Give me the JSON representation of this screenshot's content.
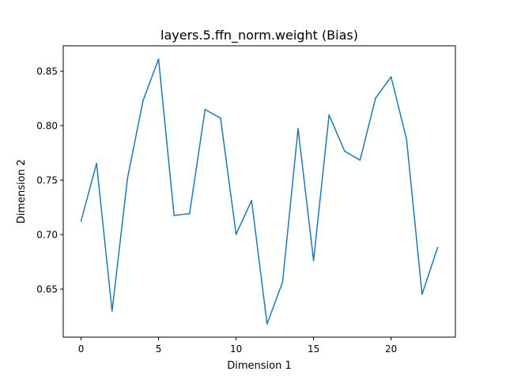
{
  "chart_data": {
    "type": "line",
    "title": "layers.5.ffn_norm.weight (Bias)",
    "xlabel": "Dimension 1",
    "ylabel": "Dimension 2",
    "xlim": [
      -1.15,
      24.15
    ],
    "ylim": [
      0.6059,
      0.8732
    ],
    "x_ticks": [
      0,
      5,
      10,
      15,
      20
    ],
    "y_ticks": [
      0.65,
      0.7,
      0.75,
      0.8,
      0.85
    ],
    "y_tick_labels": [
      "0.65",
      "0.70",
      "0.75",
      "0.80",
      "0.85"
    ],
    "grid": false,
    "line_color": "#1f77b4",
    "series": [
      {
        "x": [
          0,
          1,
          2,
          3,
          4,
          5,
          6,
          7,
          8,
          9,
          10,
          11,
          12,
          13,
          14,
          15,
          16,
          17,
          18,
          19,
          20,
          21,
          22,
          23
        ],
        "values": [
          0.7125,
          0.7653,
          0.6298,
          0.752,
          0.823,
          0.861,
          0.7175,
          0.7193,
          0.8147,
          0.8068,
          0.7002,
          0.7313,
          0.618,
          0.6564,
          0.7972,
          0.6762,
          0.8097,
          0.7766,
          0.7683,
          0.8252,
          0.8447,
          0.7874,
          0.6452,
          0.6879
        ]
      }
    ]
  }
}
